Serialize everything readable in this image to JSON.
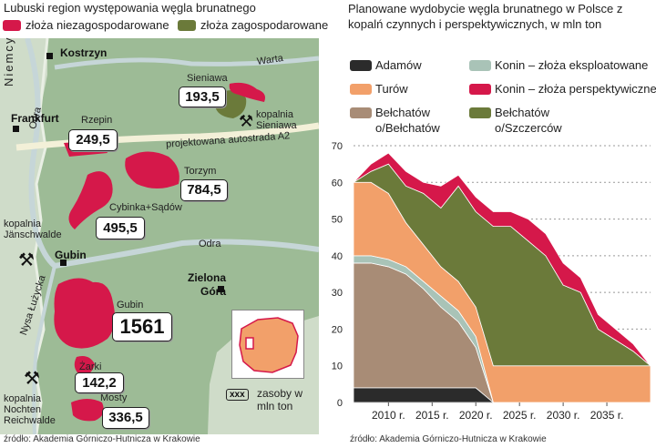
{
  "left": {
    "title": "Lubuski region występowania węgla brunatnego",
    "legend": {
      "undeveloped": "złoża niezagospodarowane",
      "developed": "złoża zagospodarowane"
    },
    "colors": {
      "undeveloped": "#d5184a",
      "developed": "#6b7a3a",
      "land": "#9dbb96",
      "germany": "#cfdcc9"
    },
    "country": "Niemcy",
    "rivers": [
      "Odra",
      "Warta",
      "Odra",
      "Nysa Łużycka"
    ],
    "road": "projektowana autostrada A2",
    "towns": [
      "Kostrzyn",
      "Frankfurt",
      "Gubin",
      "Zielona Góra"
    ],
    "deposits": [
      {
        "name": "Sieniawa",
        "value": "193,5"
      },
      {
        "name": "Rzepin",
        "value": "249,5"
      },
      {
        "name": "Torzym",
        "value": "784,5"
      },
      {
        "name": "Cybinka+Sądów",
        "value": "495,5"
      },
      {
        "name": "Gubin",
        "value": "1561"
      },
      {
        "name": "Żarki",
        "value": "142,2"
      },
      {
        "name": "Mosty",
        "value": "336,5"
      }
    ],
    "mines": [
      "kopalnia Sieniawa",
      "kopalnia Jänschwalde",
      "kopalnia Nochten Reichwalde"
    ],
    "key_box": "xxx",
    "key_text": "zasoby w mln ton",
    "source": "źródło: Akademia Górniczo-Hutnicza w Krakowie"
  },
  "chart_data": {
    "type": "area",
    "title": "Planowane wydobycie węgla brunatnego w Polsce z kopalń czynnych i perspektywicznych, w mln ton",
    "x": [
      2006,
      2008,
      2010,
      2012,
      2014,
      2016,
      2018,
      2020,
      2022,
      2024,
      2026,
      2028,
      2030,
      2032,
      2034,
      2036,
      2038,
      2040
    ],
    "xticks": [
      "2010 r.",
      "2015 r.",
      "2020 r.",
      "2025 r.",
      "2030 r.",
      "2035 r."
    ],
    "yticks": [
      "0",
      "10",
      "20",
      "30",
      "40",
      "50",
      "60",
      "70"
    ],
    "ylim": [
      0,
      70
    ],
    "series": [
      {
        "name": "Adamów",
        "color": "#2b2b2b",
        "values": [
          4,
          4,
          4,
          4,
          4,
          4,
          4,
          4,
          0,
          0,
          0,
          0,
          0,
          0,
          0,
          0,
          0,
          0
        ]
      },
      {
        "name": "Bełchatów o/Bełchatów",
        "color": "#a88c76",
        "values": [
          34,
          34,
          33,
          31,
          27,
          22,
          18,
          11,
          0,
          0,
          0,
          0,
          0,
          0,
          0,
          0,
          0,
          0
        ]
      },
      {
        "name": "Konin – złoża eksploatowane",
        "color": "#a9c3b7",
        "values": [
          2,
          2,
          2,
          2,
          2,
          3,
          3,
          3,
          0,
          0,
          0,
          0,
          0,
          0,
          0,
          0,
          0,
          0
        ]
      },
      {
        "name": "Turów",
        "color": "#f2a06a",
        "values": [
          20,
          20,
          18,
          12,
          10,
          8,
          8,
          8,
          10,
          10,
          10,
          10,
          10,
          10,
          10,
          10,
          10,
          10
        ]
      },
      {
        "name": "Bełchatów o/Szczerców",
        "color": "#6b7a3a",
        "values": [
          0,
          3,
          8,
          10,
          14,
          16,
          26,
          26,
          38,
          38,
          34,
          30,
          22,
          20,
          10,
          7,
          4,
          0
        ]
      },
      {
        "name": "Konin – złoża perspektywiczne",
        "color": "#d5184a",
        "values": [
          0,
          2,
          3,
          4,
          3,
          6,
          3,
          4,
          4,
          4,
          6,
          6,
          6,
          4,
          4,
          3,
          2,
          0
        ]
      }
    ],
    "legend_position": "top",
    "grid": true
  },
  "right": {
    "source": "źródło: Akademia Górniczo-Hutnicza w Krakowie"
  }
}
